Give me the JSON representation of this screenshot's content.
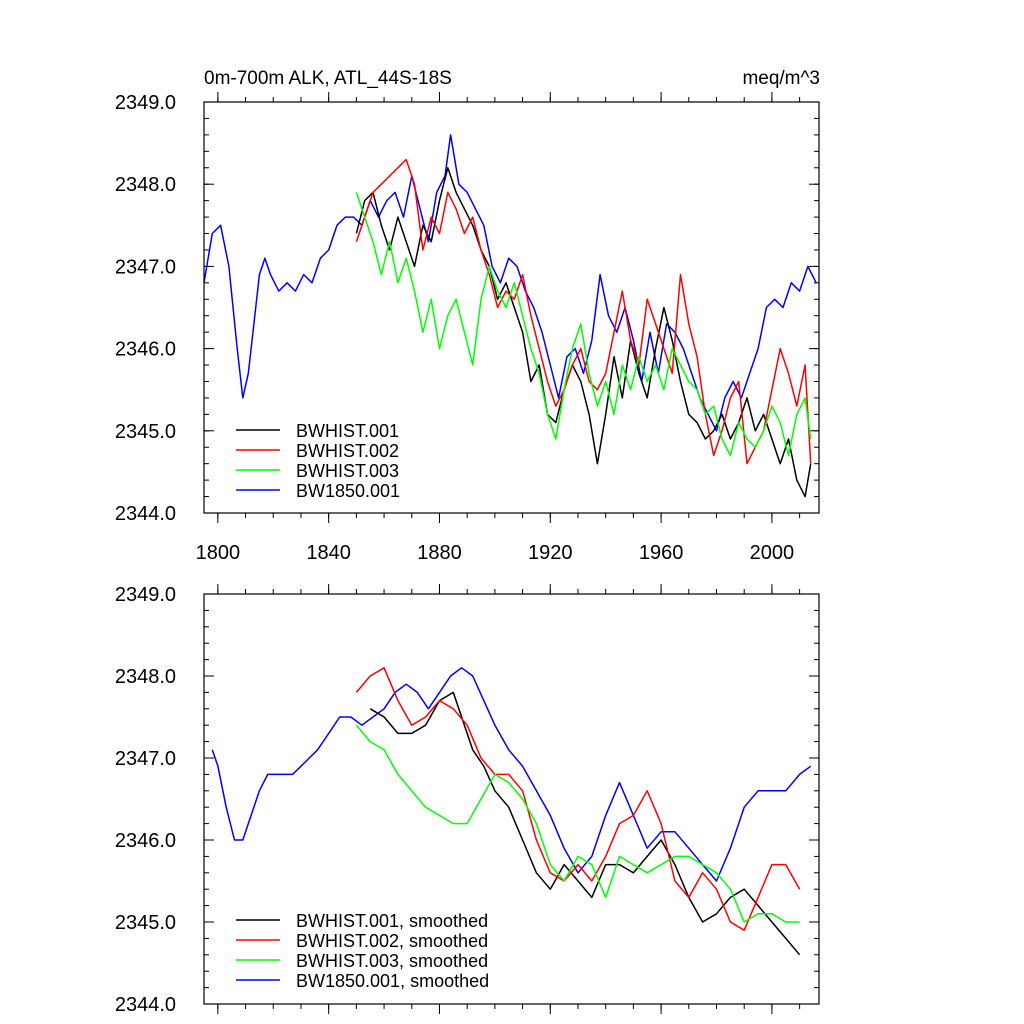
{
  "chart_data": [
    {
      "type": "line",
      "title_left": "0m-700m ALK, ATL_44S-18S",
      "title_right": "meq/m^3",
      "xlim": [
        1795,
        2017
      ],
      "ylim": [
        2344.0,
        2349.0
      ],
      "xticks": [
        1800,
        1840,
        1880,
        1920,
        1960,
        2000
      ],
      "yticks": [
        2344.0,
        2345.0,
        2346.0,
        2347.0,
        2348.0,
        2349.0
      ],
      "ytick_labels": [
        "2344.0",
        "2345.0",
        "2346.0",
        "2347.0",
        "2348.0",
        "2349.0"
      ],
      "show_xtick_labels": true,
      "series": [
        {
          "name": "BWHIST.001",
          "color": "#000000",
          "x": [
            1850,
            1853,
            1856,
            1859,
            1862,
            1865,
            1868,
            1871,
            1874,
            1877,
            1880,
            1883,
            1886,
            1889,
            1892,
            1895,
            1898,
            1901,
            1904,
            1907,
            1910,
            1913,
            1916,
            1919,
            1922,
            1925,
            1928,
            1931,
            1934,
            1937,
            1940,
            1943,
            1946,
            1949,
            1952,
            1955,
            1958,
            1961,
            1964,
            1967,
            1970,
            1973,
            1976,
            1979,
            1982,
            1985,
            1988,
            1991,
            1994,
            1997,
            2000,
            2003,
            2006,
            2009,
            2012,
            2014
          ],
          "y": [
            2347.4,
            2347.8,
            2347.9,
            2347.5,
            2347.2,
            2347.6,
            2347.3,
            2347.0,
            2347.5,
            2347.3,
            2347.8,
            2348.2,
            2347.9,
            2347.7,
            2347.5,
            2347.2,
            2347.0,
            2346.6,
            2346.8,
            2346.5,
            2346.2,
            2345.6,
            2345.8,
            2345.2,
            2345.1,
            2345.5,
            2345.8,
            2345.6,
            2345.2,
            2344.6,
            2345.2,
            2345.9,
            2345.4,
            2346.1,
            2345.7,
            2345.4,
            2346.0,
            2346.5,
            2346.1,
            2345.6,
            2345.2,
            2345.1,
            2344.9,
            2345.0,
            2345.2,
            2344.9,
            2345.1,
            2345.4,
            2345.0,
            2345.2,
            2344.9,
            2344.6,
            2344.9,
            2344.4,
            2344.2,
            2344.6
          ]
        },
        {
          "name": "BWHIST.002",
          "color": "#ff0000",
          "x": [
            1850,
            1853,
            1856,
            1859,
            1862,
            1865,
            1868,
            1871,
            1874,
            1877,
            1880,
            1883,
            1886,
            1889,
            1892,
            1895,
            1898,
            1901,
            1904,
            1907,
            1910,
            1913,
            1916,
            1919,
            1922,
            1925,
            1928,
            1931,
            1934,
            1937,
            1940,
            1943,
            1946,
            1949,
            1952,
            1955,
            1958,
            1961,
            1964,
            1967,
            1970,
            1973,
            1976,
            1979,
            1982,
            1985,
            1988,
            1991,
            1994,
            1997,
            2000,
            2003,
            2006,
            2009,
            2012,
            2014
          ],
          "y": [
            2347.3,
            2347.6,
            2347.9,
            2348.0,
            2348.1,
            2348.2,
            2348.3,
            2348.0,
            2347.2,
            2347.6,
            2347.4,
            2347.9,
            2347.7,
            2347.4,
            2347.6,
            2347.2,
            2346.9,
            2346.5,
            2346.7,
            2346.6,
            2346.9,
            2346.4,
            2346.0,
            2345.6,
            2345.3,
            2345.5,
            2345.8,
            2346.0,
            2345.6,
            2345.5,
            2345.7,
            2346.2,
            2346.7,
            2346.1,
            2345.8,
            2346.6,
            2346.3,
            2346.0,
            2345.7,
            2346.9,
            2346.3,
            2345.9,
            2345.2,
            2344.7,
            2345.0,
            2345.4,
            2345.6,
            2344.6,
            2344.8,
            2345.0,
            2345.5,
            2346.0,
            2345.7,
            2345.3,
            2345.8,
            2344.6
          ]
        },
        {
          "name": "BWHIST.003",
          "color": "#00ff00",
          "x": [
            1850,
            1853,
            1856,
            1859,
            1862,
            1865,
            1868,
            1871,
            1874,
            1877,
            1880,
            1883,
            1886,
            1889,
            1892,
            1895,
            1898,
            1901,
            1904,
            1907,
            1910,
            1913,
            1916,
            1919,
            1922,
            1925,
            1928,
            1931,
            1934,
            1937,
            1940,
            1943,
            1946,
            1949,
            1952,
            1955,
            1958,
            1961,
            1964,
            1967,
            1970,
            1973,
            1976,
            1979,
            1982,
            1985,
            1988,
            1991,
            1994,
            1997,
            2000,
            2003,
            2006,
            2009,
            2012,
            2014
          ],
          "y": [
            2347.9,
            2347.6,
            2347.3,
            2346.9,
            2347.3,
            2346.8,
            2347.1,
            2346.7,
            2346.2,
            2346.6,
            2346.0,
            2346.4,
            2346.6,
            2346.2,
            2345.8,
            2346.6,
            2347.0,
            2346.7,
            2346.5,
            2346.8,
            2346.4,
            2346.0,
            2345.7,
            2345.2,
            2344.9,
            2345.5,
            2346.0,
            2346.3,
            2345.7,
            2345.3,
            2345.6,
            2345.2,
            2345.8,
            2345.5,
            2345.9,
            2345.6,
            2345.8,
            2345.5,
            2346.0,
            2345.8,
            2345.6,
            2345.5,
            2345.2,
            2345.3,
            2344.9,
            2344.7,
            2345.1,
            2344.9,
            2344.8,
            2345.0,
            2345.3,
            2345.1,
            2344.7,
            2345.2,
            2345.4,
            2344.9
          ]
        },
        {
          "name": "BW1850.001",
          "color": "#0000ff",
          "x": [
            1795,
            1798,
            1801,
            1804,
            1807,
            1809,
            1811,
            1813,
            1815,
            1817,
            1819,
            1822,
            1825,
            1828,
            1831,
            1834,
            1837,
            1840,
            1843,
            1846,
            1849,
            1852,
            1855,
            1858,
            1861,
            1864,
            1867,
            1870,
            1873,
            1876,
            1879,
            1882,
            1884,
            1887,
            1890,
            1893,
            1896,
            1899,
            1902,
            1905,
            1908,
            1911,
            1914,
            1917,
            1920,
            1923,
            1926,
            1929,
            1932,
            1935,
            1938,
            1941,
            1944,
            1947,
            1950,
            1953,
            1956,
            1959,
            1962,
            1965,
            1968,
            1971,
            1974,
            1977,
            1980,
            1983,
            1986,
            1989,
            1992,
            1995,
            1998,
            2001,
            2004,
            2007,
            2010,
            2013,
            2016
          ],
          "y": [
            2346.8,
            2347.4,
            2347.5,
            2347.0,
            2346.0,
            2345.4,
            2345.7,
            2346.3,
            2346.9,
            2347.1,
            2346.9,
            2346.7,
            2346.8,
            2346.7,
            2346.9,
            2346.8,
            2347.1,
            2347.2,
            2347.5,
            2347.6,
            2347.6,
            2347.5,
            2347.8,
            2347.6,
            2347.8,
            2347.9,
            2347.6,
            2348.1,
            2347.7,
            2347.3,
            2347.9,
            2348.1,
            2348.6,
            2348.0,
            2347.9,
            2347.7,
            2347.5,
            2347.0,
            2346.8,
            2347.1,
            2347.0,
            2346.7,
            2346.5,
            2346.2,
            2345.8,
            2345.4,
            2345.9,
            2346.0,
            2345.7,
            2346.1,
            2346.9,
            2346.4,
            2346.2,
            2346.5,
            2346.1,
            2345.6,
            2346.2,
            2345.7,
            2346.3,
            2346.2,
            2346.0,
            2345.7,
            2345.4,
            2345.2,
            2345.0,
            2345.4,
            2345.6,
            2345.4,
            2345.7,
            2346.0,
            2346.5,
            2346.6,
            2346.5,
            2346.8,
            2346.7,
            2347.0,
            2346.8
          ]
        }
      ]
    },
    {
      "type": "line",
      "xlim": [
        1795,
        2017
      ],
      "ylim": [
        2344.0,
        2349.0
      ],
      "xticks": [
        1800,
        1840,
        1880,
        1920,
        1960,
        2000
      ],
      "yticks": [
        2344.0,
        2345.0,
        2346.0,
        2347.0,
        2348.0,
        2349.0
      ],
      "ytick_labels": [
        "2344.0",
        "2345.0",
        "2346.0",
        "2347.0",
        "2348.0",
        "2349.0"
      ],
      "show_xtick_labels": false,
      "series": [
        {
          "name": "BWHIST.001, smoothed",
          "color": "#000000",
          "x": [
            1855,
            1860,
            1865,
            1870,
            1875,
            1880,
            1885,
            1888,
            1892,
            1896,
            1900,
            1905,
            1910,
            1915,
            1920,
            1925,
            1930,
            1935,
            1940,
            1945,
            1950,
            1955,
            1960,
            1965,
            1970,
            1975,
            1980,
            1985,
            1990,
            1995,
            2000,
            2005,
            2010
          ],
          "y": [
            2347.6,
            2347.5,
            2347.3,
            2347.3,
            2347.4,
            2347.7,
            2347.8,
            2347.5,
            2347.1,
            2346.9,
            2346.6,
            2346.4,
            2346.0,
            2345.6,
            2345.4,
            2345.7,
            2345.5,
            2345.3,
            2345.7,
            2345.7,
            2345.6,
            2345.8,
            2346.0,
            2345.7,
            2345.3,
            2345.0,
            2345.1,
            2345.3,
            2345.4,
            2345.2,
            2345.0,
            2344.8,
            2344.6
          ]
        },
        {
          "name": "BWHIST.002, smoothed",
          "color": "#ff0000",
          "x": [
            1850,
            1855,
            1860,
            1865,
            1870,
            1875,
            1880,
            1885,
            1890,
            1895,
            1900,
            1905,
            1910,
            1915,
            1920,
            1925,
            1930,
            1935,
            1940,
            1945,
            1950,
            1955,
            1960,
            1965,
            1970,
            1975,
            1980,
            1985,
            1990,
            1995,
            2000,
            2005,
            2010
          ],
          "y": [
            2347.8,
            2348.0,
            2348.1,
            2347.7,
            2347.4,
            2347.5,
            2347.7,
            2347.6,
            2347.4,
            2347.0,
            2346.8,
            2346.8,
            2346.6,
            2346.0,
            2345.6,
            2345.5,
            2345.7,
            2345.5,
            2345.8,
            2346.2,
            2346.3,
            2346.6,
            2346.2,
            2345.5,
            2345.3,
            2345.6,
            2345.4,
            2345.0,
            2344.9,
            2345.3,
            2345.7,
            2345.7,
            2345.4
          ]
        },
        {
          "name": "BWHIST.003, smoothed",
          "color": "#00ff00",
          "x": [
            1850,
            1855,
            1860,
            1865,
            1870,
            1875,
            1880,
            1885,
            1890,
            1895,
            1900,
            1905,
            1910,
            1915,
            1920,
            1925,
            1930,
            1935,
            1940,
            1945,
            1950,
            1955,
            1960,
            1965,
            1970,
            1975,
            1980,
            1985,
            1990,
            1995,
            2000,
            2005,
            2010
          ],
          "y": [
            2347.4,
            2347.2,
            2347.1,
            2346.8,
            2346.6,
            2346.4,
            2346.3,
            2346.2,
            2346.2,
            2346.5,
            2346.8,
            2346.7,
            2346.5,
            2346.2,
            2345.7,
            2345.5,
            2345.8,
            2345.7,
            2345.3,
            2345.8,
            2345.7,
            2345.6,
            2345.7,
            2345.8,
            2345.8,
            2345.7,
            2345.6,
            2345.4,
            2345.0,
            2345.1,
            2345.1,
            2345.0,
            2345.0
          ]
        },
        {
          "name": "BW1850.001, smoothed",
          "color": "#0000ff",
          "x": [
            1798,
            1800,
            1803,
            1806,
            1809,
            1812,
            1815,
            1818,
            1821,
            1824,
            1827,
            1830,
            1833,
            1836,
            1840,
            1844,
            1848,
            1852,
            1856,
            1860,
            1864,
            1868,
            1872,
            1876,
            1880,
            1884,
            1888,
            1892,
            1896,
            1900,
            1905,
            1910,
            1915,
            1920,
            1925,
            1930,
            1935,
            1940,
            1945,
            1950,
            1955,
            1960,
            1965,
            1970,
            1975,
            1980,
            1985,
            1990,
            1995,
            2000,
            2005,
            2010,
            2014
          ],
          "y": [
            2347.1,
            2346.9,
            2346.4,
            2346.0,
            2346.0,
            2346.3,
            2346.6,
            2346.8,
            2346.8,
            2346.8,
            2346.8,
            2346.9,
            2347.0,
            2347.1,
            2347.3,
            2347.5,
            2347.5,
            2347.4,
            2347.5,
            2347.6,
            2347.8,
            2347.9,
            2347.8,
            2347.6,
            2347.8,
            2348.0,
            2348.1,
            2348.0,
            2347.7,
            2347.4,
            2347.1,
            2346.9,
            2346.6,
            2346.3,
            2345.9,
            2345.6,
            2345.8,
            2346.3,
            2346.7,
            2346.3,
            2345.9,
            2346.1,
            2346.1,
            2345.9,
            2345.7,
            2345.5,
            2345.9,
            2346.4,
            2346.6,
            2346.6,
            2346.6,
            2346.8,
            2346.9
          ]
        }
      ]
    }
  ]
}
